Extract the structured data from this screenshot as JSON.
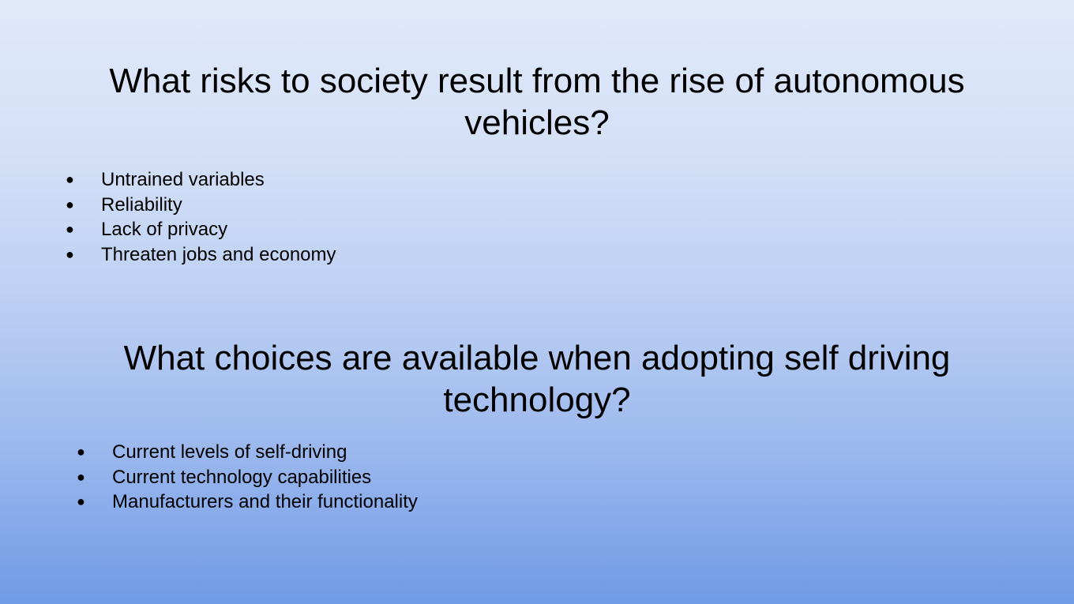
{
  "slide": {
    "section_1": {
      "heading_line_1": "What risks to society result from the rise of autonomous",
      "heading_line_2": "vehicles?",
      "bullets": [
        "Untrained variables",
        "Reliability",
        "Lack of privacy",
        "Threaten jobs and economy"
      ]
    },
    "section_2": {
      "heading_line_1": "What choices are available when adopting self driving",
      "heading_line_2": "technology?",
      "bullets": [
        "Current levels of self-driving",
        "Current technology capabilities",
        "Manufacturers and their functionality"
      ]
    },
    "bullet_glyph": "●",
    "colors": {
      "gradient_top": "#e1e9fa",
      "gradient_bottom": "#6f9ae6",
      "text": "#000000"
    }
  }
}
